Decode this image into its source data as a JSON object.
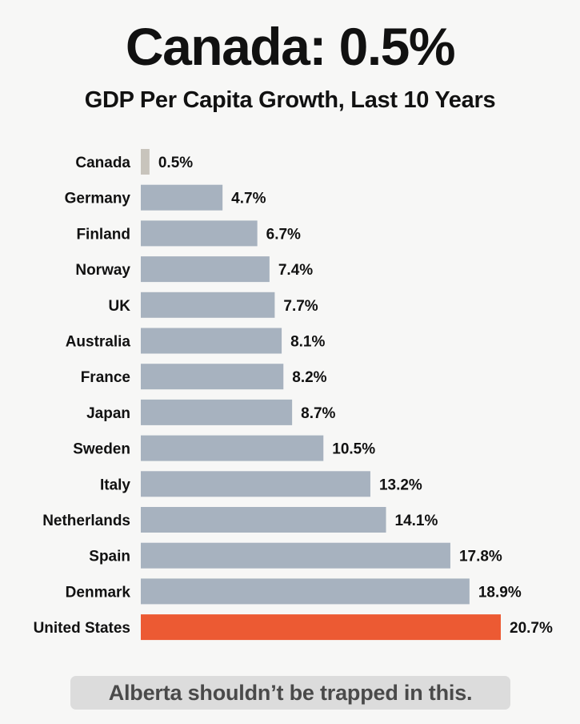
{
  "title": "Canada: 0.5%",
  "subtitle": "GDP Per Capita Growth, Last 10 Years",
  "footer": "Alberta shouldn’t be trapped in this.",
  "colors": {
    "default_bar": "#a7b2bf",
    "canada_bar": "#c8c4bc",
    "highlight_bar": "#ec5a33",
    "text": "#111111",
    "footer_bg": "#dcdcdc"
  },
  "chart_data": {
    "type": "bar",
    "orientation": "horizontal",
    "title": "Canada: 0.5%",
    "subtitle": "GDP Per Capita Growth, Last 10 Years",
    "xlabel": "",
    "ylabel": "",
    "unit": "%",
    "grid": false,
    "legend": "none",
    "xlim": [
      0,
      20.7
    ],
    "categories": [
      "Canada",
      "Germany",
      "Finland",
      "Norway",
      "UK",
      "Australia",
      "France",
      "Japan",
      "Sweden",
      "Italy",
      "Netherlands",
      "Spain",
      "Denmark",
      "United States"
    ],
    "values": [
      0.5,
      4.7,
      6.7,
      7.4,
      7.7,
      8.1,
      8.2,
      8.7,
      10.5,
      13.2,
      14.1,
      17.8,
      18.9,
      20.7
    ],
    "value_labels": [
      "0.5%",
      "4.7%",
      "6.7%",
      "7.4%",
      "7.7%",
      "8.1%",
      "8.2%",
      "8.7%",
      "10.5%",
      "13.2%",
      "14.1%",
      "17.8%",
      "18.9%",
      "20.7%"
    ],
    "highlight": "United States"
  }
}
